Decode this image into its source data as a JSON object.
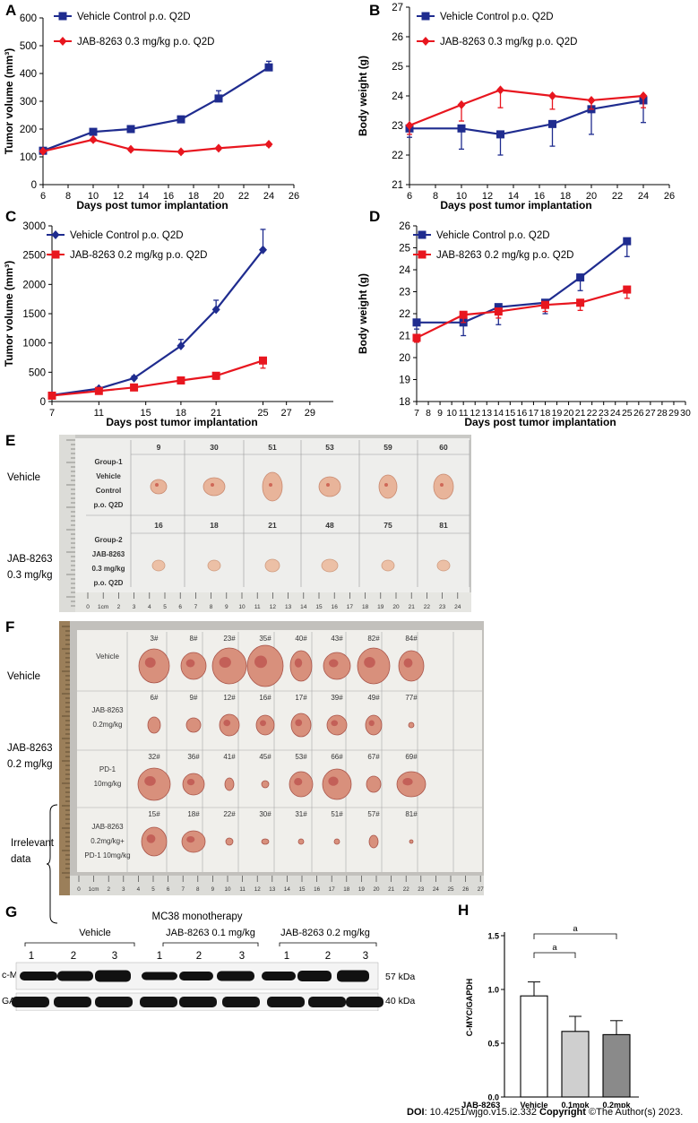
{
  "chart_data": [
    {
      "type": "line",
      "panel": "A",
      "ylabel": "Tumor volume (mm³)",
      "xlabel": "Days post tumor implantation",
      "xlim": [
        6,
        26
      ],
      "ylim": [
        0,
        600
      ],
      "xticks": [
        6,
        8,
        10,
        12,
        14,
        16,
        18,
        20,
        22,
        24,
        26
      ],
      "yticks": [
        0,
        100,
        200,
        300,
        400,
        500,
        600
      ],
      "series": [
        {
          "name": "Vehicle Control p.o. Q2D",
          "color": "#1f2c8f",
          "marker": "square",
          "x": [
            6,
            10,
            13,
            17,
            20,
            24
          ],
          "y": [
            122,
            190,
            200,
            235,
            310,
            422
          ],
          "err": [
            6,
            6,
            6,
            8,
            28,
            22
          ]
        },
        {
          "name": "JAB-8263 0.3 mg/kg p.o. Q2D",
          "color": "#e8161f",
          "marker": "diamond",
          "x": [
            6,
            10,
            13,
            17,
            20,
            24
          ],
          "y": [
            120,
            162,
            127,
            118,
            131,
            145
          ],
          "err": [
            5,
            6,
            5,
            5,
            5,
            6
          ]
        }
      ]
    },
    {
      "type": "line",
      "panel": "B",
      "ylabel": "Body weight (g)",
      "xlabel": "Days post tumor implantation",
      "xlim": [
        6,
        26
      ],
      "ylim": [
        21,
        27
      ],
      "xticks": [
        6,
        8,
        10,
        12,
        14,
        16,
        18,
        20,
        22,
        24,
        26
      ],
      "yticks": [
        21,
        22,
        23,
        24,
        25,
        26,
        27
      ],
      "series": [
        {
          "name": "Vehicle Control p.o. Q2D",
          "color": "#1f2c8f",
          "marker": "square",
          "x": [
            6,
            10,
            13,
            17,
            20,
            24
          ],
          "y": [
            22.9,
            22.9,
            22.7,
            23.05,
            23.55,
            23.85
          ],
          "err": [
            0.3,
            0.7,
            0.7,
            0.75,
            0.85,
            0.75
          ]
        },
        {
          "name": "JAB-8263 0.3 mg/kg p.o. Q2D",
          "color": "#e8161f",
          "marker": "diamond",
          "x": [
            6,
            10,
            13,
            17,
            20,
            24
          ],
          "y": [
            23.0,
            23.7,
            24.2,
            24.0,
            23.85,
            24.0
          ],
          "err": [
            0.3,
            0.55,
            0.6,
            0.45,
            0.3,
            0.4
          ]
        }
      ]
    },
    {
      "type": "line",
      "panel": "C",
      "ylabel": "Tumor volume (mm³)",
      "xlabel": "Days post tumor implantation",
      "xlim": [
        7,
        31
      ],
      "ylim": [
        0,
        3000
      ],
      "xticks": [
        7,
        11,
        15,
        18,
        21,
        25,
        27,
        29
      ],
      "yticks": [
        0,
        500,
        1000,
        1500,
        2000,
        2500,
        3000
      ],
      "series": [
        {
          "name": "Vehicle Control p.o. Q2D",
          "color": "#1f2c8f",
          "marker": "diamond",
          "x": [
            7,
            11,
            14,
            18,
            21,
            25
          ],
          "y": [
            110,
            220,
            400,
            950,
            1570,
            2590
          ],
          "err": [
            15,
            25,
            35,
            110,
            160,
            350
          ]
        },
        {
          "name": "JAB-8263 0.2 mg/kg p.o. Q2D",
          "color": "#e8161f",
          "marker": "square",
          "x": [
            7,
            11,
            14,
            18,
            21,
            25
          ],
          "y": [
            100,
            180,
            240,
            360,
            440,
            700
          ],
          "err": [
            10,
            20,
            25,
            40,
            60,
            130
          ]
        }
      ]
    },
    {
      "type": "line",
      "panel": "D",
      "ylabel": "Body weight (g)",
      "xlabel": "Days post tumor implantation",
      "xlim": [
        7,
        30
      ],
      "ylim": [
        18,
        26
      ],
      "xticks": [
        7,
        8,
        9,
        10,
        11,
        12,
        13,
        14,
        15,
        16,
        17,
        18,
        19,
        20,
        21,
        22,
        23,
        24,
        25,
        26,
        27,
        28,
        29,
        30
      ],
      "yticks": [
        18,
        19,
        20,
        21,
        22,
        23,
        24,
        25,
        26
      ],
      "series": [
        {
          "name": "Vehicle Control p.o. Q2D",
          "color": "#1f2c8f",
          "marker": "square",
          "x": [
            7,
            11,
            14,
            18,
            21,
            25
          ],
          "y": [
            21.6,
            21.6,
            22.3,
            22.5,
            23.65,
            25.3
          ],
          "err": [
            0.3,
            0.6,
            0.8,
            0.5,
            0.6,
            0.7
          ]
        },
        {
          "name": "JAB-8263 0.2 mg/kg p.o. Q2D",
          "color": "#e8161f",
          "marker": "square",
          "x": [
            7,
            11,
            14,
            18,
            21,
            25
          ],
          "y": [
            20.9,
            21.95,
            22.1,
            22.4,
            22.5,
            23.1
          ],
          "err": [
            0.2,
            0.35,
            0.3,
            0.3,
            0.35,
            0.4
          ]
        }
      ]
    },
    {
      "type": "bar",
      "panel": "H",
      "ylabel": "C-MYC/GAPDH",
      "xaxis_title": "JAB-8263",
      "categories": [
        "Vehicle",
        "0.1mpk",
        "0.2mpk"
      ],
      "values": [
        0.94,
        0.61,
        0.58
      ],
      "err": [
        0.13,
        0.14,
        0.13
      ],
      "colors": [
        "#ffffff",
        "#cfcfcf",
        "#8a8a8a"
      ],
      "ylim": [
        0,
        1.5
      ],
      "yticks": [
        "0.0",
        "0.5",
        "1.0",
        "1.5"
      ],
      "significance": [
        {
          "from": 0,
          "to": 1,
          "label": "a"
        },
        {
          "from": 0,
          "to": 2,
          "label": "a"
        }
      ]
    }
  ],
  "panels": {
    "A": "A",
    "B": "B",
    "C": "C",
    "D": "D",
    "E": "E",
    "F": "F",
    "G": "G",
    "H": "H"
  },
  "photoE": {
    "row_labels": [
      "Vehicle",
      "JAB-8263\n0.3 mg/kg"
    ],
    "group1": [
      "Group-1",
      "Vehicle",
      "Control",
      "p.o. Q2D"
    ],
    "group2": [
      "Group-2",
      "JAB-8263",
      "0.3 mg/kg",
      "p.o. Q2D"
    ],
    "ids_row1": [
      "9",
      "30",
      "51",
      "53",
      "59",
      "60"
    ],
    "ids_row2": [
      "16",
      "18",
      "21",
      "48",
      "75",
      "81"
    ],
    "ruler": [
      "0",
      "1cm",
      "2",
      "3",
      "4",
      "5",
      "6",
      "7",
      "8",
      "9",
      "10",
      "11",
      "12",
      "13",
      "14",
      "15",
      "16",
      "17",
      "18",
      "19",
      "20",
      "21",
      "22",
      "23",
      "24"
    ]
  },
  "photoF": {
    "row_labels": [
      "Vehicle",
      "JAB-8263\n0.2 mg/kg",
      "Irrelevant\ndata"
    ],
    "groups": [
      {
        "lines": [
          "Vehicle"
        ],
        "ids": [
          "3#",
          "8#",
          "23#",
          "35#",
          "40#",
          "43#",
          "82#",
          "84#"
        ]
      },
      {
        "lines": [
          "JAB-8263",
          "0.2mg/kg"
        ],
        "ids": [
          "6#",
          "9#",
          "12#",
          "16#",
          "17#",
          "39#",
          "49#",
          "77#"
        ]
      },
      {
        "lines": [
          "PD-1",
          "10mg/kg"
        ],
        "ids": [
          "32#",
          "36#",
          "41#",
          "45#",
          "53#",
          "66#",
          "67#",
          "69#"
        ]
      },
      {
        "lines": [
          "JAB-8263",
          "0.2mg/kg+",
          "PD-1 10mg/kg"
        ],
        "ids": [
          "15#",
          "18#",
          "22#",
          "30#",
          "31#",
          "51#",
          "57#",
          "81#"
        ]
      }
    ],
    "ruler": [
      "0",
      "1cm",
      "2",
      "3",
      "4",
      "5",
      "6",
      "7",
      "8",
      "9",
      "10",
      "11",
      "12",
      "13",
      "14",
      "15",
      "16",
      "17",
      "18",
      "19",
      "20",
      "21",
      "22",
      "23",
      "24",
      "25",
      "26",
      "27"
    ]
  },
  "blot": {
    "title": "MC38 monotherapy",
    "groups": [
      "Vehicle",
      "JAB-8263  0.1 mg/kg",
      "JAB-8263  0.2 mg/kg"
    ],
    "lanes": [
      "1",
      "2",
      "3",
      "1",
      "2",
      "3",
      "1",
      "2",
      "3"
    ],
    "rows": [
      "c-MYC",
      "GAPDH"
    ],
    "sizes": [
      "57 kDa",
      "40 kDa"
    ]
  },
  "footer": {
    "doi_label": "DOI",
    "doi_text": ": 10.4251/wjgo.v15.i2.332",
    "copyright_label": "Copyright",
    "copyright_text": " ©The Author(s) 2023."
  }
}
